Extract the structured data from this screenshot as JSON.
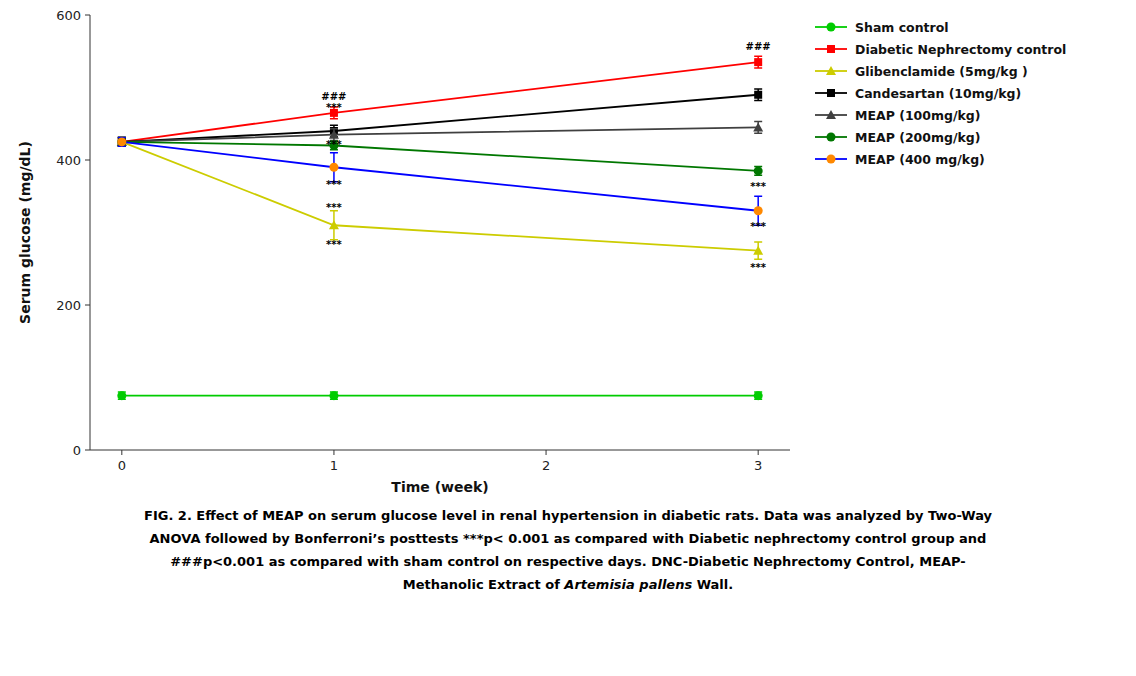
{
  "chart_data": {
    "type": "line",
    "x": [
      0,
      1,
      3
    ],
    "xlim": [
      -0.15,
      3.15
    ],
    "xticks": [
      0,
      1,
      2,
      3
    ],
    "ylim": [
      0,
      600
    ],
    "yticks": [
      0,
      200,
      400,
      600
    ],
    "x_label": "Time (week)",
    "y_label": "Serum glucose (mg/dL)",
    "grid": false,
    "legend": "upper right",
    "series": [
      {
        "name": "Sham control",
        "color": "#00cc00",
        "marker": "circle",
        "values": [
          75,
          75,
          75
        ],
        "errors": [
          5,
          5,
          5
        ]
      },
      {
        "name": "Diabetic Nephrectomy control",
        "color": "#ff0000",
        "marker": "square",
        "values": [
          425,
          465,
          535
        ],
        "errors": [
          6,
          8,
          8
        ]
      },
      {
        "name": "Glibenclamide (5mg/kg )",
        "color": "#cccc00",
        "marker": "triangle",
        "values": [
          425,
          310,
          275
        ],
        "errors": [
          6,
          20,
          12
        ]
      },
      {
        "name": "Candesartan (10mg/kg)",
        "color": "#000000",
        "marker": "square",
        "values": [
          425,
          440,
          490
        ],
        "errors": [
          6,
          8,
          8
        ]
      },
      {
        "name": "MEAP (100mg/kg)",
        "color": "#404040",
        "marker": "triangle",
        "values": [
          425,
          435,
          445
        ],
        "errors": [
          6,
          8,
          8
        ]
      },
      {
        "name": "MEAP (200mg/kg)",
        "color": "#007700",
        "marker": "circle",
        "values": [
          425,
          420,
          385
        ],
        "errors": [
          6,
          6,
          6
        ]
      },
      {
        "name": "MEAP (400 mg/kg)",
        "color": "#0000ff",
        "colors": [
          "#ff8800",
          "#ff8800",
          "#ff8800"
        ],
        "marker": "circle",
        "values": [
          425,
          390,
          330
        ],
        "errors": [
          6,
          20,
          20
        ]
      }
    ],
    "annotations": [
      {
        "text": "###",
        "x": 1,
        "y": 487
      },
      {
        "text": "***",
        "x": 1,
        "y": 473
      },
      {
        "text": "***",
        "x": 1,
        "y": 421
      },
      {
        "text": "***",
        "x": 1,
        "y": 366
      },
      {
        "text": "***",
        "x": 1,
        "y": 334
      },
      {
        "text": "***",
        "x": 1,
        "y": 284
      },
      {
        "text": "###",
        "x": 3,
        "y": 556
      },
      {
        "text": "***",
        "x": 3,
        "y": 363
      },
      {
        "text": "***",
        "x": 3,
        "y": 308
      },
      {
        "text": "***",
        "x": 3,
        "y": 252
      }
    ],
    "caption": [
      [
        {
          "text": "FIG. 2. Effect of MEAP on serum glucose level in renal hypertension in diabetic rats. Data was analyzed by Two-Way"
        }
      ],
      [
        {
          "text": "ANOVA followed by Bonferroni’s posttests ***p< 0.001 as compared with Diabetic nephrectomy control group and"
        }
      ],
      [
        {
          "text": "###p<0.001 as compared with sham control on respective days. DNC-Diabetic Nephrectomy Control, MEAP-"
        }
      ],
      [
        {
          "text": "Methanolic Extract of "
        },
        {
          "text": "Artemisia pallens",
          "font_style": "italic"
        },
        {
          "text": " Wall."
        }
      ]
    ]
  }
}
